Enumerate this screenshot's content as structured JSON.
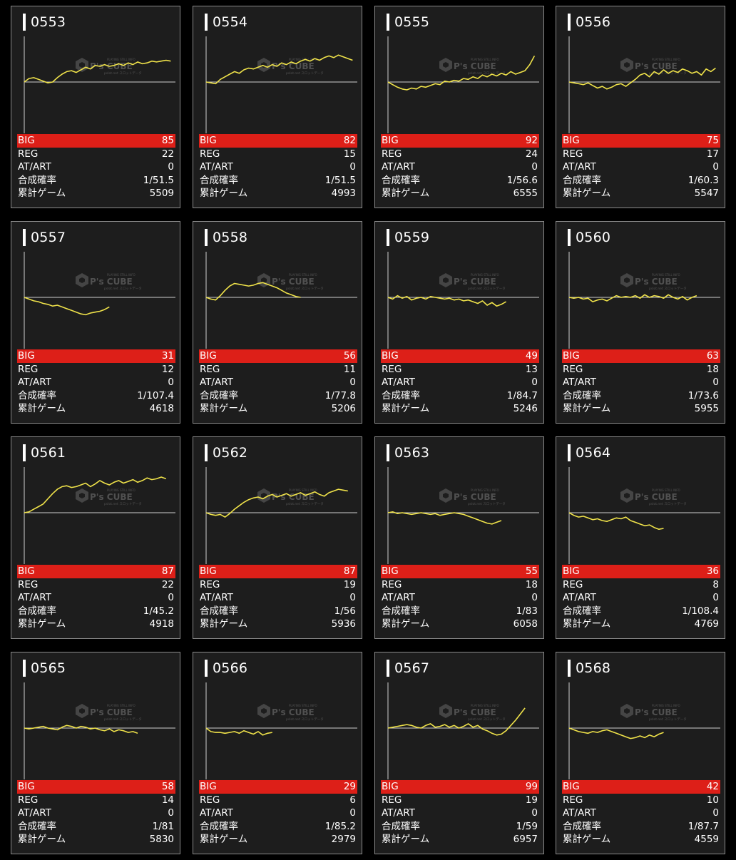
{
  "colors": {
    "page_background": "#000000",
    "card_background": "#1d1d1d",
    "card_border": "#8a8a8a",
    "graph_line": "#f0e34a",
    "axis_line": "#cfcfcf",
    "big_row": "#dd1f18",
    "text": "#ffffff"
  },
  "watermark": {
    "brand": "P's CUBE",
    "top_text": "PLAYING STILL INFO",
    "bottom_text": "pslot.net スロットデータ"
  },
  "labels": {
    "big": "BIG",
    "reg": "REG",
    "atart": "AT/ART",
    "combined": "合成確率",
    "games": "累計ゲーム"
  },
  "machines": [
    {
      "id": "0553",
      "big": "85",
      "reg": "22",
      "atart": "0",
      "combined": "1/51.5",
      "games": "5509",
      "trend": [
        0,
        4,
        5,
        3,
        1,
        -1,
        0,
        5,
        9,
        12,
        13,
        11,
        14,
        17,
        15,
        19,
        18,
        20,
        18,
        19,
        21,
        19,
        22,
        20,
        23,
        21,
        22,
        24,
        23,
        24,
        25,
        24
      ]
    },
    {
      "id": "0554",
      "big": "82",
      "reg": "15",
      "atart": "0",
      "combined": "1/51.5",
      "games": "4993",
      "trend": [
        0,
        -1,
        -2,
        3,
        6,
        9,
        12,
        10,
        14,
        16,
        15,
        17,
        19,
        17,
        20,
        18,
        22,
        20,
        23,
        21,
        24,
        26,
        24,
        27,
        25,
        28,
        30,
        28,
        31,
        29,
        27,
        25
      ]
    },
    {
      "id": "0555",
      "big": "92",
      "reg": "24",
      "atart": "0",
      "combined": "1/56.6",
      "games": "6555",
      "trend": [
        0,
        -3,
        -6,
        -8,
        -9,
        -7,
        -8,
        -5,
        -6,
        -4,
        -2,
        -3,
        1,
        0,
        2,
        1,
        4,
        3,
        6,
        4,
        8,
        6,
        9,
        7,
        10,
        8,
        12,
        9,
        11,
        13,
        20,
        30
      ]
    },
    {
      "id": "0556",
      "big": "75",
      "reg": "17",
      "atart": "0",
      "combined": "1/60.3",
      "games": "5547",
      "trend": [
        0,
        -1,
        -2,
        -3,
        -1,
        -4,
        -7,
        -5,
        -8,
        -6,
        -3,
        -2,
        -5,
        -1,
        3,
        8,
        10,
        6,
        12,
        9,
        14,
        10,
        13,
        11,
        15,
        13,
        10,
        12,
        8,
        15,
        12,
        16
      ]
    },
    {
      "id": "0557",
      "big": "31",
      "reg": "12",
      "atart": "0",
      "combined": "1/107.4",
      "games": "4618",
      "trend": [
        0,
        -2,
        -4,
        -5,
        -7,
        -8,
        -10,
        -9,
        -11,
        -13,
        -15,
        -17,
        -19,
        -20,
        -18,
        -17,
        -16,
        -14,
        -11
      ]
    },
    {
      "id": "0558",
      "big": "56",
      "reg": "11",
      "atart": "0",
      "combined": "1/77.8",
      "games": "5206",
      "trend": [
        0,
        -2,
        -3,
        2,
        8,
        13,
        16,
        15,
        14,
        13,
        14,
        16,
        17,
        15,
        13,
        11,
        8,
        5,
        3,
        1,
        0
      ]
    },
    {
      "id": "0559",
      "big": "49",
      "reg": "13",
      "atart": "0",
      "combined": "1/84.7",
      "games": "5246",
      "trend": [
        0,
        -2,
        2,
        -1,
        1,
        -3,
        -1,
        0,
        -2,
        1,
        0,
        -1,
        -2,
        -1,
        -3,
        -2,
        -4,
        -3,
        -5,
        -7,
        -4,
        -9,
        -6,
        -10,
        -8,
        -5
      ]
    },
    {
      "id": "0560",
      "big": "63",
      "reg": "18",
      "atart": "0",
      "combined": "1/73.6",
      "games": "5955",
      "trend": [
        0,
        -1,
        0,
        -2,
        -1,
        -5,
        -3,
        -2,
        -4,
        -1,
        2,
        0,
        1,
        0,
        2,
        -1,
        3,
        0,
        2,
        1,
        -1,
        3,
        0,
        -2,
        1,
        -3,
        0,
        2
      ]
    },
    {
      "id": "0561",
      "big": "87",
      "reg": "22",
      "atart": "0",
      "combined": "1/45.2",
      "games": "4918",
      "trend": [
        0,
        1,
        4,
        7,
        10,
        16,
        22,
        27,
        30,
        31,
        29,
        30,
        32,
        34,
        30,
        33,
        37,
        34,
        32,
        35,
        37,
        34,
        36,
        38,
        35,
        37,
        40,
        38,
        39,
        41,
        39
      ]
    },
    {
      "id": "0562",
      "big": "87",
      "reg": "19",
      "atart": "0",
      "combined": "1/56",
      "games": "5936",
      "trend": [
        0,
        -2,
        -3,
        -2,
        -5,
        -1,
        4,
        8,
        12,
        15,
        17,
        18,
        16,
        19,
        21,
        18,
        20,
        22,
        19,
        21,
        23,
        20,
        22,
        24,
        21,
        19,
        23,
        25,
        27,
        26,
        25
      ]
    },
    {
      "id": "0563",
      "big": "55",
      "reg": "18",
      "atart": "0",
      "combined": "1/83",
      "games": "6058",
      "trend": [
        0,
        1,
        -1,
        0,
        -1,
        -2,
        -1,
        0,
        -1,
        -2,
        -1,
        -3,
        -2,
        -1,
        0,
        -1,
        -2,
        -4,
        -6,
        -8,
        -10,
        -12,
        -13,
        -11,
        -9
      ]
    },
    {
      "id": "0564",
      "big": "36",
      "reg": "8",
      "atart": "0",
      "combined": "1/108.4",
      "games": "4769",
      "trend": [
        0,
        -3,
        -5,
        -4,
        -6,
        -8,
        -7,
        -9,
        -10,
        -8,
        -6,
        -7,
        -5,
        -9,
        -11,
        -13,
        -15,
        -14,
        -17,
        -19,
        -18
      ]
    },
    {
      "id": "0565",
      "big": "58",
      "reg": "14",
      "atart": "0",
      "combined": "1/81",
      "games": "5830",
      "trend": [
        0,
        -1,
        0,
        1,
        2,
        0,
        -1,
        -2,
        1,
        3,
        2,
        0,
        2,
        1,
        -1,
        0,
        -2,
        -3,
        -1,
        -4,
        -2,
        -3,
        -5,
        -4,
        -6
      ]
    },
    {
      "id": "0566",
      "big": "29",
      "reg": "6",
      "atart": "0",
      "combined": "1/85.2",
      "games": "2979",
      "trend": [
        0,
        -4,
        -5,
        -5,
        -6,
        -5,
        -4,
        -6,
        -3,
        -5,
        -7,
        -4,
        -8,
        -6,
        -5
      ]
    },
    {
      "id": "0567",
      "big": "99",
      "reg": "19",
      "atart": "0",
      "combined": "1/59",
      "games": "6957",
      "trend": [
        0,
        1,
        2,
        3,
        4,
        3,
        1,
        0,
        3,
        5,
        1,
        2,
        4,
        1,
        3,
        0,
        2,
        5,
        1,
        3,
        -1,
        -3,
        -6,
        -8,
        -7,
        -3,
        3,
        9,
        16,
        23
      ]
    },
    {
      "id": "0568",
      "big": "42",
      "reg": "10",
      "atart": "0",
      "combined": "1/87.7",
      "games": "4559",
      "trend": [
        0,
        -2,
        -4,
        -5,
        -6,
        -4,
        -5,
        -3,
        -2,
        -4,
        -6,
        -8,
        -10,
        -12,
        -11,
        -9,
        -11,
        -8,
        -10,
        -7,
        -5
      ]
    }
  ]
}
